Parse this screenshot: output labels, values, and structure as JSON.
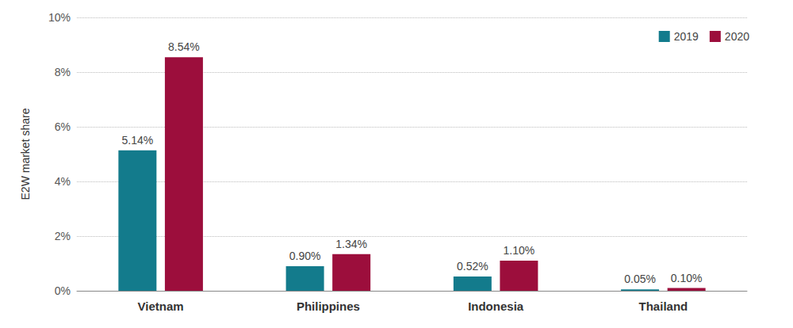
{
  "chart_data": {
    "type": "bar",
    "y_label": "E2W market share",
    "categories": [
      "Vietnam",
      "Philippines",
      "Indonesia",
      "Thailand"
    ],
    "series": [
      {
        "name": "2019",
        "color": "#137b8c",
        "values": [
          5.14,
          0.9,
          0.52,
          0.05
        ],
        "value_labels": [
          "5.14%",
          "0.90%",
          "0.52%",
          "0.05%"
        ]
      },
      {
        "name": "2020",
        "color": "#9c0e3c",
        "values": [
          8.54,
          1.34,
          1.1,
          0.1
        ],
        "value_labels": [
          "8.54%",
          "1.34%",
          "1.10%",
          "0.10%"
        ]
      }
    ],
    "ylim": [
      0,
      10
    ],
    "yticks": [
      {
        "value": 0,
        "label": "0%"
      },
      {
        "value": 2,
        "label": "2%"
      },
      {
        "value": 4,
        "label": "4%"
      },
      {
        "value": 6,
        "label": "6%"
      },
      {
        "value": 8,
        "label": "8%"
      },
      {
        "value": 10,
        "label": "10%"
      }
    ],
    "grid": true,
    "legend": "top-right",
    "data_labels": true
  }
}
